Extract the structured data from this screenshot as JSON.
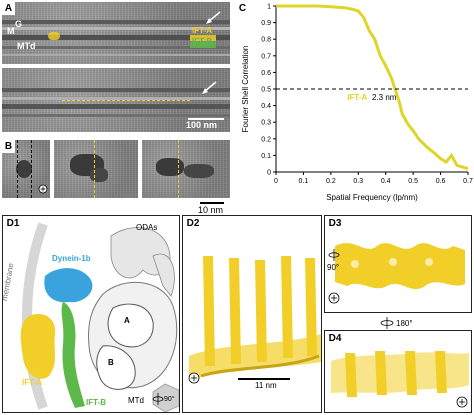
{
  "panel_a": {
    "label": "A",
    "annotations": {
      "m": "M",
      "g": "G",
      "mtd": "MTd",
      "ift_a": "IFT-A",
      "ift_b": "IFT-B"
    },
    "scale_label": "100 nm"
  },
  "panel_b": {
    "label": "B",
    "scale_label": "10 nm"
  },
  "panel_c": {
    "label": "C",
    "annotation_text": "IFT-A",
    "annotation_value": "2.3 nm"
  },
  "panel_d1": {
    "label": "D1",
    "labels": {
      "odas": "ODAs",
      "dynein": "Dynein-1b",
      "membrane": "membrane",
      "ift_a": "IFT-A",
      "ift_b": "IFT-B",
      "a": "A",
      "b": "B",
      "mtd": "MTd",
      "rotation": "90°"
    }
  },
  "panel_d2": {
    "label": "D2",
    "scale_label": "11 nm"
  },
  "panel_d3": {
    "label": "D3",
    "rotation": "90°"
  },
  "panel_d4": {
    "label": "D4",
    "rotation": "180°"
  },
  "colors": {
    "ift_a": "#f2cf28",
    "ift_b": "#5db84a",
    "dynein": "#3aa3dd",
    "axis": "#000000",
    "fsc_line": "#dfd52a"
  },
  "chart_data": {
    "type": "line",
    "title": "",
    "xlabel": "Spatial Frequency (lp/nm)",
    "ylabel": "Fourier Shell Correlation",
    "xlim": [
      0,
      0.7
    ],
    "ylim": [
      0,
      1.0
    ],
    "xticks": [
      "0",
      "0.1",
      "0.2",
      "0.3",
      "0.4",
      "0.5",
      "0.6",
      "0.7"
    ],
    "yticks": [
      "0",
      "0.1",
      "0.2",
      "0.3",
      "0.4",
      "0.5",
      "0.6",
      "0.7",
      "0.8",
      "0.9",
      "1"
    ],
    "threshold": 0.5,
    "grid": false,
    "series": [
      {
        "name": "",
        "x": [
          0.0,
          0.05,
          0.1,
          0.15,
          0.2,
          0.25,
          0.28,
          0.3,
          0.32,
          0.34,
          0.36,
          0.38,
          0.4,
          0.42,
          0.43,
          0.44,
          0.45,
          0.46,
          0.48,
          0.5,
          0.52,
          0.55,
          0.58,
          0.6,
          0.62,
          0.64,
          0.66,
          0.68,
          0.7
        ],
        "y": [
          1.0,
          1.0,
          1.0,
          1.0,
          0.995,
          0.99,
          0.98,
          0.97,
          0.93,
          0.85,
          0.8,
          0.7,
          0.64,
          0.57,
          0.52,
          0.47,
          0.42,
          0.35,
          0.29,
          0.25,
          0.2,
          0.15,
          0.11,
          0.08,
          0.06,
          0.1,
          0.04,
          0.03,
          0.02
        ]
      }
    ]
  }
}
